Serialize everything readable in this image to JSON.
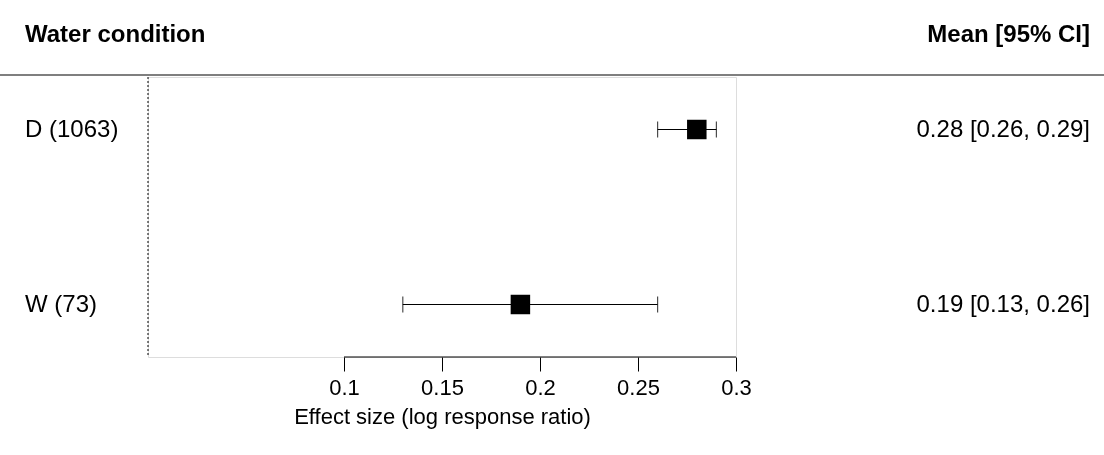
{
  "chart_data": {
    "type": "scatter",
    "orientation": "horizontal",
    "ylabel": "Water condition",
    "xlabel": "Effect size (log response ratio)",
    "categories": [
      "D (1063)",
      "W (73)"
    ],
    "series": [
      {
        "color": "#000000",
        "values": [
          0.28,
          0.19
        ],
        "errors": [
          [
            0.26,
            0.29
          ],
          [
            0.13,
            0.26
          ]
        ],
        "value_labels": [
          "0.28 [0.26, 0.29]",
          "0.19 [0.13, 0.26]"
        ]
      }
    ],
    "annotations": [
      "Mean [95% CI]"
    ],
    "xlim": [
      0,
      0.3
    ],
    "xticks": [
      {
        "value": 0.1,
        "label": "0.1"
      },
      0.15,
      {
        "value": 0.2,
        "label": "0.2"
      },
      0.25,
      {
        "value": 0.3,
        "label": "0.3"
      }
    ],
    "ref_lines": [
      {
        "axis": "x",
        "value": 0,
        "line_style": "dotted",
        "color": "#000000"
      }
    ],
    "marker": "square",
    "grid": false
  }
}
